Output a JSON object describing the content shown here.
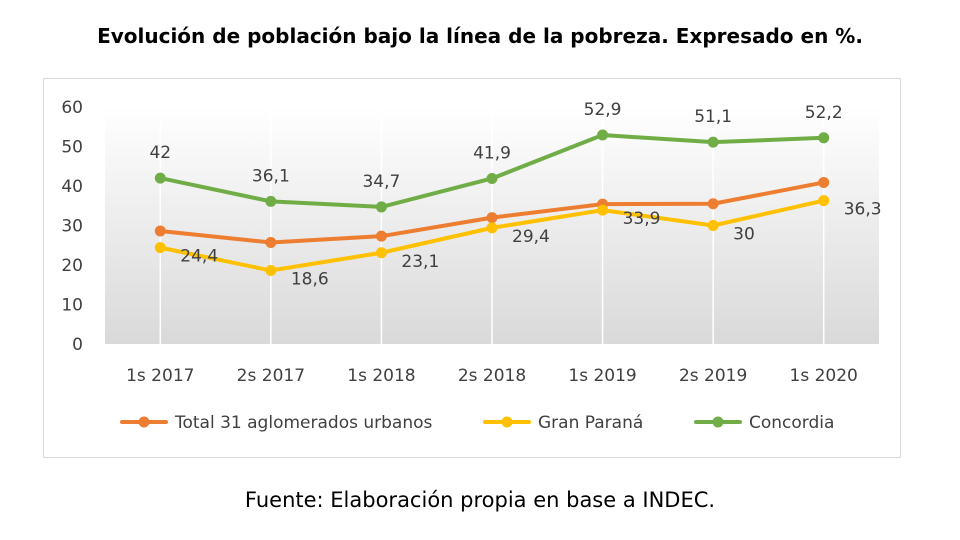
{
  "title": "Evolución de población bajo la línea de la pobreza. Expresado en %.",
  "source": "Fuente: Elaboración propia en base a INDEC.",
  "chart_data": {
    "type": "line",
    "categories": [
      "1s 2017",
      "2s 2017",
      "1s 2018",
      "2s 2018",
      "1s 2019",
      "2s 2019",
      "1s 2020"
    ],
    "ylim": [
      0,
      60
    ],
    "yticks": [
      0,
      10,
      20,
      30,
      40,
      50,
      60
    ],
    "grid": "vertical",
    "legend_position": "bottom",
    "series": [
      {
        "name": "Total 31 aglomerados urbanos",
        "color": "#ed7d31",
        "values": [
          28.6,
          25.7,
          27.3,
          32.0,
          35.4,
          35.5,
          40.9
        ],
        "labels": [
          "",
          "",
          "",
          "",
          "",
          "",
          ""
        ]
      },
      {
        "name": "Gran Paraná",
        "color": "#ffc000",
        "values": [
          24.4,
          18.6,
          23.1,
          29.4,
          33.9,
          30.0,
          36.3
        ],
        "labels": [
          "24,4",
          "18,6",
          "23,1",
          "29,4",
          "33,9",
          "30",
          "36,3"
        ]
      },
      {
        "name": "Concordia",
        "color": "#70ad47",
        "values": [
          42.0,
          36.1,
          34.7,
          41.9,
          52.9,
          51.1,
          52.2
        ],
        "labels": [
          "42",
          "36,1",
          "34,7",
          "41,9",
          "52,9",
          "51,1",
          "52,2"
        ]
      }
    ]
  }
}
